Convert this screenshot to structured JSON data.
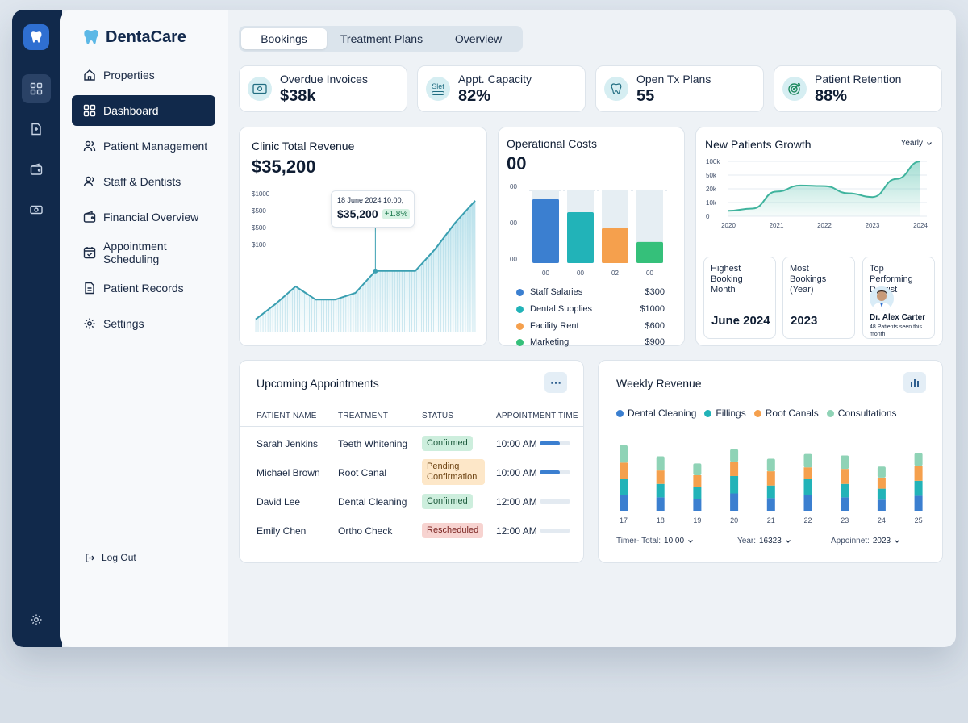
{
  "app": {
    "name": "DentaCare"
  },
  "sidebar": {
    "items": [
      {
        "label": "Properties",
        "icon": "home-icon"
      },
      {
        "label": "Dashboard",
        "icon": "grid-icon",
        "active": true
      },
      {
        "label": "Patient Management",
        "icon": "users-icon"
      },
      {
        "label": "Staff & Dentists",
        "icon": "user-icon"
      },
      {
        "label": "Financial Overview",
        "icon": "wallet-icon"
      },
      {
        "label": "Appointment Scheduling",
        "icon": "calendar-icon"
      },
      {
        "label": "Patient Records",
        "icon": "file-icon"
      },
      {
        "label": "Settings",
        "icon": "gear-icon"
      }
    ],
    "logout": "Log Out"
  },
  "tabs": [
    {
      "label": "Bookings",
      "active": true
    },
    {
      "label": "Treatment Plans"
    },
    {
      "label": "Overview"
    }
  ],
  "kpis": [
    {
      "label": "Overdue Invoices",
      "value": "$38k",
      "icon": "cash-icon"
    },
    {
      "label": "Appt. Capacity",
      "value": "82%",
      "icon": "capacity-icon",
      "icon_text": "Slet"
    },
    {
      "label": "Open Tx Plans",
      "value": "55",
      "icon": "tooth-icon"
    },
    {
      "label": "Patient Retention",
      "value": "88%",
      "icon": "target-icon"
    }
  ],
  "revenue": {
    "title": "Clinic Total Revenue",
    "value": "$35,200",
    "y_ticks": [
      "$1000",
      "$500",
      "$500",
      "$100"
    ],
    "tooltip": {
      "date": "18 June 2024 10:00,",
      "value": "$35,200",
      "change": "+1.8%"
    }
  },
  "costs": {
    "title": "Operational Costs",
    "value": "00",
    "y_ticks": [
      "00",
      "00",
      "00"
    ],
    "x_ticks": [
      "00",
      "00",
      "02",
      "00"
    ],
    "legend": [
      {
        "name": "Staff Salaries",
        "amount": "$300",
        "color": "#3b7fd0"
      },
      {
        "name": "Dental Supplies",
        "amount": "$1000",
        "color": "#22b3b8"
      },
      {
        "name": "Facility Rent",
        "amount": "$600",
        "color": "#f5a04d"
      },
      {
        "name": "Marketing",
        "amount": "$900",
        "color": "#35c07a"
      }
    ]
  },
  "growth": {
    "title": "New Patients Growth",
    "period": "Yearly",
    "y_ticks": [
      "100k",
      "50k",
      "20k",
      "10k",
      "0"
    ],
    "x_ticks": [
      "2020",
      "2021",
      "2022",
      "2023",
      "2024"
    ],
    "cards": [
      {
        "label": "Highest Booking Month",
        "value": "June 2024"
      },
      {
        "label": "Most Bookings (Year)",
        "value": "2023"
      },
      {
        "label": "Top Performing Dentist",
        "name": "Dr. Alex Carter",
        "detail": "48 Patients seen this month"
      }
    ]
  },
  "appointments": {
    "title": "Upcoming Appointments",
    "columns": [
      "PATIENT NAME",
      "TREATMENT",
      "STATUS",
      "APPOINTMENT TIME"
    ],
    "rows": [
      {
        "patient": "Sarah Jenkins",
        "treatment": "Teeth Whitening",
        "status": "Confirmed",
        "status_kind": "green",
        "time": "10:00 AM",
        "progress": 0.65
      },
      {
        "patient": "Michael Brown",
        "treatment": "Root Canal",
        "status": "Pending Confirmation",
        "status_kind": "orange",
        "time": "10:00 AM",
        "progress": 0.65
      },
      {
        "patient": "David Lee",
        "treatment": "Dental Cleaning",
        "status": "Confirmed",
        "status_kind": "green",
        "time": "12:00 AM",
        "progress": 0
      },
      {
        "patient": "Emily Chen",
        "treatment": "Ortho Check",
        "status": "Rescheduled",
        "status_kind": "red",
        "time": "12:00 AM",
        "progress": 0
      }
    ]
  },
  "weekly": {
    "title": "Weekly Revenue",
    "legend": [
      {
        "name": "Dental Cleaning",
        "color": "#3b7fd0"
      },
      {
        "name": "Fillings",
        "color": "#22b3b8"
      },
      {
        "name": "Root Canals",
        "color": "#f5a04d"
      },
      {
        "name": "Consultations",
        "color": "#8fd3b6"
      }
    ],
    "filters": [
      {
        "label": "Timer- Total:",
        "value": "10:00"
      },
      {
        "label": "Year:",
        "value": "16323"
      },
      {
        "label": "Appoinnet:",
        "value": "2023"
      }
    ]
  },
  "chart_data": [
    {
      "type": "area",
      "title": "Clinic Total Revenue",
      "x": [
        0,
        1,
        2,
        3,
        4,
        5,
        6,
        7,
        8,
        9,
        10,
        11
      ],
      "values": [
        120,
        260,
        420,
        300,
        300,
        360,
        560,
        560,
        560,
        760,
        1000,
        1200
      ],
      "ylim": [
        0,
        1250
      ],
      "grid": false
    },
    {
      "type": "bar",
      "title": "Operational Costs",
      "categories": [
        "00",
        "00",
        "02",
        "00"
      ],
      "values": [
        0.88,
        0.7,
        0.48,
        0.29
      ],
      "colors": [
        "#3b7fd0",
        "#22b3b8",
        "#f5a04d",
        "#35c07a"
      ],
      "ylim": [
        0,
        1
      ]
    },
    {
      "type": "area",
      "title": "New Patients Growth",
      "categories": [
        "2020",
        "2021",
        "2022",
        "2023",
        "2024"
      ],
      "x": [
        2020,
        2020.5,
        2021,
        2021.5,
        2022,
        2022.5,
        2023,
        2023.5,
        2024
      ],
      "values": [
        10,
        14,
        45,
        56,
        55,
        42,
        35,
        68,
        100
      ],
      "ylim": [
        0,
        100
      ]
    },
    {
      "type": "bar",
      "title": "Weekly Revenue",
      "categories": [
        "17",
        "18",
        "19",
        "20",
        "21",
        "22",
        "23",
        "24",
        "25"
      ],
      "series": [
        {
          "name": "Dental Cleaning",
          "values": [
            20,
            17,
            15,
            22,
            16,
            20,
            17,
            14,
            19
          ]
        },
        {
          "name": "Fillings",
          "values": [
            20,
            17,
            15,
            22,
            16,
            20,
            17,
            14,
            19
          ]
        },
        {
          "name": "Root Canals",
          "values": [
            21,
            17,
            15,
            18,
            18,
            15,
            19,
            14,
            19
          ]
        },
        {
          "name": "Consultations",
          "values": [
            22,
            18,
            15,
            16,
            16,
            17,
            17,
            14,
            16
          ]
        }
      ],
      "ylim": [
        0,
        90
      ]
    }
  ]
}
